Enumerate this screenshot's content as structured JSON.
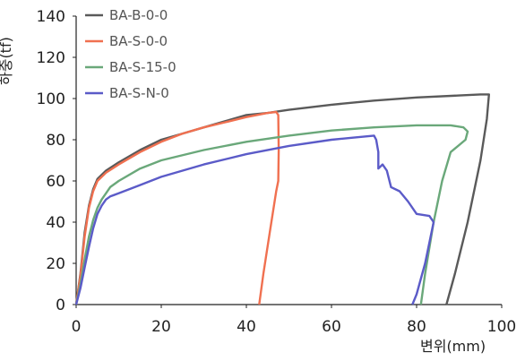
{
  "chart_data": {
    "type": "line",
    "xlabel": "변위(mm)",
    "ylabel": "하중(tf)",
    "xlim": [
      0,
      100
    ],
    "ylim": [
      0,
      140
    ],
    "xticks": [
      0,
      20,
      40,
      60,
      80,
      100
    ],
    "yticks": [
      0,
      20,
      40,
      60,
      80,
      100,
      120,
      140
    ],
    "grid": false,
    "legend_position": "top-left",
    "series": [
      {
        "name": "BA-B-0-0",
        "color": "#5a5a5a",
        "points": [
          [
            0,
            0
          ],
          [
            1,
            15
          ],
          [
            2,
            35
          ],
          [
            3,
            48
          ],
          [
            4,
            56
          ],
          [
            5,
            61
          ],
          [
            7,
            65
          ],
          [
            10,
            69
          ],
          [
            15,
            75
          ],
          [
            20,
            80
          ],
          [
            25,
            83
          ],
          [
            30,
            86
          ],
          [
            35,
            89
          ],
          [
            40,
            92
          ],
          [
            45,
            93
          ],
          [
            50,
            94.5
          ],
          [
            60,
            97
          ],
          [
            70,
            99
          ],
          [
            80,
            100.5
          ],
          [
            90,
            101.5
          ],
          [
            95,
            102
          ],
          [
            97,
            102
          ],
          [
            96.5,
            90
          ],
          [
            95,
            70
          ],
          [
            92,
            40
          ],
          [
            89,
            15
          ],
          [
            87,
            0
          ]
        ]
      },
      {
        "name": "BA-S-0-0",
        "color": "#f07050",
        "points": [
          [
            0,
            0
          ],
          [
            1,
            14
          ],
          [
            2,
            33
          ],
          [
            3,
            47
          ],
          [
            4,
            55
          ],
          [
            5,
            60
          ],
          [
            7,
            64
          ],
          [
            10,
            68
          ],
          [
            15,
            74
          ],
          [
            20,
            79
          ],
          [
            25,
            83
          ],
          [
            30,
            86
          ],
          [
            35,
            88.5
          ],
          [
            40,
            91
          ],
          [
            45,
            93
          ],
          [
            47,
            93.5
          ],
          [
            47.5,
            92
          ],
          [
            47.6,
            75
          ],
          [
            47.5,
            60
          ],
          [
            47,
            55
          ],
          [
            45.5,
            35
          ],
          [
            44,
            15
          ],
          [
            43,
            0
          ]
        ]
      },
      {
        "name": "BA-S-15-0",
        "color": "#6aa87a",
        "points": [
          [
            0,
            0
          ],
          [
            1,
            10
          ],
          [
            2,
            22
          ],
          [
            3,
            33
          ],
          [
            4,
            41
          ],
          [
            5,
            47
          ],
          [
            6,
            51
          ],
          [
            7,
            54
          ],
          [
            8,
            57
          ],
          [
            10,
            60
          ],
          [
            15,
            66
          ],
          [
            20,
            70
          ],
          [
            30,
            75
          ],
          [
            40,
            79
          ],
          [
            50,
            82
          ],
          [
            60,
            84.5
          ],
          [
            70,
            86
          ],
          [
            80,
            87
          ],
          [
            88,
            87
          ],
          [
            91,
            86
          ],
          [
            92,
            84
          ],
          [
            91.5,
            80
          ],
          [
            88,
            74
          ],
          [
            86,
            60
          ],
          [
            84,
            40
          ],
          [
            82,
            15
          ],
          [
            81,
            0
          ]
        ]
      },
      {
        "name": "BA-S-N-0",
        "color": "#5b5bc8",
        "points": [
          [
            0,
            0
          ],
          [
            1,
            8
          ],
          [
            2,
            18
          ],
          [
            3,
            28
          ],
          [
            4,
            37
          ],
          [
            5,
            44
          ],
          [
            6,
            48
          ],
          [
            7,
            51
          ],
          [
            8,
            52.5
          ],
          [
            10,
            54
          ],
          [
            15,
            58
          ],
          [
            20,
            62
          ],
          [
            30,
            68
          ],
          [
            40,
            73
          ],
          [
            50,
            77
          ],
          [
            60,
            80
          ],
          [
            65,
            81
          ],
          [
            70,
            82
          ],
          [
            70.5,
            80
          ],
          [
            71,
            74
          ],
          [
            71,
            66
          ],
          [
            72,
            68
          ],
          [
            73,
            65
          ],
          [
            74,
            57
          ],
          [
            76,
            55
          ],
          [
            78,
            50
          ],
          [
            80,
            44
          ],
          [
            83,
            43
          ],
          [
            84,
            40
          ],
          [
            82,
            20
          ],
          [
            80,
            5
          ],
          [
            79,
            0
          ]
        ]
      }
    ]
  }
}
